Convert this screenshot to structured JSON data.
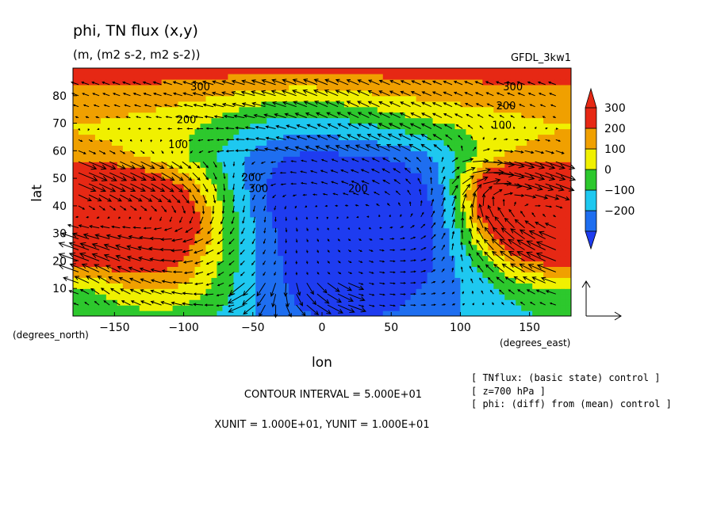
{
  "chart_data": {
    "type": "heatmap",
    "title": "phi, TN flux (x,y)",
    "subtitle": "(m, (m2 s-2, m2 s-2))",
    "model_label": "GFDL_3kw1",
    "xlabel": "lon",
    "ylabel": "lat",
    "x_unit_label": "(degrees_east)",
    "y_unit_label": "(degrees_north)",
    "xlim": [
      -180,
      180
    ],
    "ylim": [
      0,
      90
    ],
    "x_ticks": [
      -150,
      -100,
      -50,
      0,
      50,
      100,
      150
    ],
    "x_tick_labels": [
      "−150",
      "−100",
      "−50",
      "0",
      "50",
      "100",
      "150"
    ],
    "y_ticks": [
      10,
      20,
      30,
      40,
      50,
      60,
      70,
      80
    ],
    "y_tick_labels": [
      "10",
      "20",
      "30",
      "40",
      "50",
      "60",
      "70",
      "80"
    ],
    "colorbar": {
      "levels": [
        -200,
        -100,
        0,
        100,
        200,
        300
      ],
      "labels": [
        "−200",
        "−100",
        "0",
        "100",
        "200",
        "300"
      ],
      "colors": [
        "#1e6ef0",
        "#1ec8f0",
        "#2dc82d",
        "#f0f000",
        "#f0a000",
        "#e62814"
      ],
      "under_color": "#1e3cf0",
      "over_color": "#e62814"
    },
    "contour_labels": [
      {
        "text": "300",
        "lon": -88,
        "lat": 82
      },
      {
        "text": "200",
        "lon": -98,
        "lat": 70
      },
      {
        "text": "100",
        "lon": -104,
        "lat": 61
      },
      {
        "text": "300",
        "lon": 138,
        "lat": 82
      },
      {
        "text": "200",
        "lon": 133,
        "lat": 75
      },
      {
        "text": "100",
        "lon": 130,
        "lat": 68
      },
      {
        "text": "200",
        "lon": -51,
        "lat": 49
      },
      {
        "text": "300",
        "lon": -46,
        "lat": 45
      },
      {
        "text": "200",
        "lon": 26,
        "lat": 45
      }
    ],
    "field_blobs": [
      {
        "lon": -140,
        "lat": 36,
        "rlon": 62,
        "rlat": 16,
        "amp": 460
      },
      {
        "lon": -112,
        "lat": 34,
        "rlon": 30,
        "rlat": 13,
        "amp": 120
      },
      {
        "lon": 150,
        "lat": 37,
        "rlon": 40,
        "rlat": 15,
        "amp": 460
      },
      {
        "lon": 122,
        "lat": 46,
        "rlon": 18,
        "rlat": 8,
        "amp": 180
      },
      {
        "lon": 15,
        "lat": 22,
        "rlon": 70,
        "rlat": 26,
        "amp": -300
      },
      {
        "lon": -30,
        "lat": 45,
        "rlon": 40,
        "rlat": 12,
        "amp": -160
      },
      {
        "lon": 70,
        "lat": 40,
        "rlon": 40,
        "rlat": 14,
        "amp": -180
      },
      {
        "lon": -100,
        "lat": 10,
        "rlon": 35,
        "rlat": 9,
        "amp": 130
      },
      {
        "lon": 140,
        "lat": 18,
        "rlon": 40,
        "rlat": 12,
        "amp": -40
      },
      {
        "lon": -170,
        "lat": 10,
        "rlon": 14,
        "rlat": 8,
        "amp": -60
      }
    ],
    "polar_field": {
      "base": 360,
      "ridge_lon": -20,
      "ridge_lat": 72,
      "ridge_amp": -120
    },
    "vector_field_name": "TN flux",
    "vector_ref_arrow": {
      "x_value": 10,
      "y_value": 10
    },
    "annotations": [
      "CONTOUR INTERVAL = 5.000E+01",
      "XUNIT = 1.000E+01, YUNIT = 1.000E+01"
    ],
    "info_lines": [
      "[ TNflux: (basic state) control ]",
      "[ z=700 hPa ]",
      "[ phi: (diff) from (mean) control ]"
    ]
  }
}
